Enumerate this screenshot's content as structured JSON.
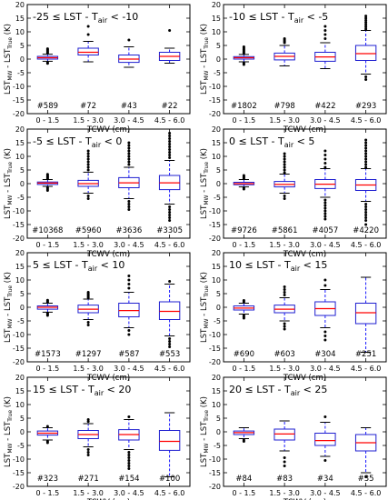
{
  "figure": {
    "xlabel": "TCWV (cm)",
    "ylabel_main": "LST",
    "ylabel_sub1": "MW",
    "ylabel_mid": " - LST",
    "ylabel_sub2": "True",
    "ylabel_unit": " (K)",
    "categories": [
      "0 - 1.5",
      "1.5 - 3.0",
      "3.0 - 4.5",
      "4.5 - 6.0"
    ],
    "y_ticks": [
      -20,
      -15,
      -10,
      -5,
      0,
      5,
      10,
      15,
      20
    ],
    "ylim": [
      -20,
      20
    ],
    "colors": {
      "box": "#1f1fd0",
      "median": "#ff0000",
      "whisker": "#0000ff",
      "flier": "#000000"
    }
  },
  "chart_data": [
    {
      "type": "box",
      "title_prefix": "-25 ≤ LST - T",
      "title_sub": "air",
      "title_suffix": " < -10",
      "categories": [
        "0 - 1.5",
        "1.5 - 3.0",
        "3.0 - 4.5",
        "4.5 - 6.0"
      ],
      "counts": [
        "#589",
        "#72",
        "#43",
        "#22"
      ],
      "ylim": [
        -20,
        20
      ],
      "boxes": [
        {
          "wl": -0.8,
          "q1": 0.0,
          "med": 0.5,
          "q3": 1.0,
          "wh": 1.8,
          "fliers": [
            -1.3,
            -1.6,
            2.2,
            2.6,
            3.0,
            3.4,
            3.8
          ]
        },
        {
          "wl": -1.0,
          "q1": 1.5,
          "med": 2.5,
          "q3": 4.0,
          "wh": 6.5,
          "fliers": [
            9.0,
            12.0
          ]
        },
        {
          "wl": -3.0,
          "q1": -1.2,
          "med": 0.0,
          "q3": 1.5,
          "wh": 4.5,
          "fliers": [
            7.0
          ]
        },
        {
          "wl": -1.5,
          "q1": -0.5,
          "med": 1.0,
          "q3": 2.5,
          "wh": 4.0,
          "fliers": [
            10.5
          ]
        }
      ]
    },
    {
      "type": "box",
      "title_prefix": "-10 ≤ LST - T",
      "title_sub": "air",
      "title_suffix": " < -5",
      "categories": [
        "0 - 1.5",
        "1.5 - 3.0",
        "3.0 - 4.5",
        "4.5 - 6.0"
      ],
      "counts": [
        "#1802",
        "#798",
        "#422",
        "#293"
      ],
      "ylim": [
        -20,
        20
      ],
      "boxes": [
        {
          "wl": -1.0,
          "q1": 0.0,
          "med": 0.5,
          "q3": 0.9,
          "wh": 1.7,
          "fliers": [
            -1.5,
            -2.0,
            2.0,
            2.5,
            3.0,
            3.5,
            4.0,
            4.5
          ]
        },
        {
          "wl": -2.5,
          "q1": -0.3,
          "med": 1.0,
          "q3": 2.2,
          "wh": 5.0,
          "fliers": [
            6.0,
            6.5,
            7.0,
            7.5
          ]
        },
        {
          "wl": -3.5,
          "q1": -0.8,
          "med": 0.8,
          "q3": 2.5,
          "wh": 6.0,
          "fliers": [
            7.5,
            9.0,
            10.5,
            12.0
          ]
        },
        {
          "wl": -5.5,
          "q1": -0.5,
          "med": 2.0,
          "q3": 5.0,
          "wh": 10.5,
          "fliers": [
            11.0,
            11.8,
            12.6,
            13.4,
            14.2,
            15.0,
            15.8,
            -6.5,
            -7.5
          ]
        }
      ]
    },
    {
      "type": "box",
      "title_prefix": "-5 ≤ LST - T",
      "title_sub": "air",
      "title_suffix": " < 0",
      "categories": [
        "0 - 1.5",
        "1.5 - 3.0",
        "3.0 - 4.5",
        "4.5 - 6.0"
      ],
      "counts": [
        "#10368",
        "#5960",
        "#3636",
        "#3305"
      ],
      "ylim": [
        -20,
        20
      ],
      "boxes": [
        {
          "wl": -1.0,
          "q1": -0.3,
          "med": 0.2,
          "q3": 0.6,
          "wh": 1.5,
          "fliers": [
            -1.5,
            -2.0,
            -2.5,
            1.8,
            2.2,
            2.6,
            3.0,
            3.4
          ]
        },
        {
          "wl": -3.5,
          "q1": -1.0,
          "med": 0.0,
          "q3": 1.2,
          "wh": 4.2,
          "fliers": [
            -4.5,
            -5.5,
            5.0,
            6.0,
            7.0,
            8.0,
            9.0,
            10.0,
            11.0,
            12.0
          ]
        },
        {
          "wl": -5.5,
          "q1": -1.5,
          "med": 0.3,
          "q3": 2.2,
          "wh": 6.0,
          "fliers": [
            -6.5,
            -7.5,
            -8.5,
            -9.5,
            7.0,
            8.0,
            9.0,
            10.0,
            11.0,
            12.0,
            13.0,
            14.0,
            15.0
          ]
        },
        {
          "wl": -7.5,
          "q1": -2.2,
          "med": 0.3,
          "q3": 3.0,
          "wh": 8.5,
          "fliers": [
            -8.5,
            -9.5,
            -10.5,
            -11.5,
            -12.5,
            -13.5,
            9.5,
            10.5,
            11.5,
            12.5,
            13.5,
            14.5,
            15.5,
            16.5,
            17.5,
            18.5
          ]
        }
      ]
    },
    {
      "type": "box",
      "title_prefix": "0 ≤ LST - T",
      "title_sub": "air",
      "title_suffix": " < 5",
      "categories": [
        "0 - 1.5",
        "1.5 - 3.0",
        "3.0 - 4.5",
        "4.5 - 6.0"
      ],
      "counts": [
        "#9726",
        "#5861",
        "#4057",
        "#4220"
      ],
      "ylim": [
        -20,
        20
      ],
      "boxes": [
        {
          "wl": -1.2,
          "q1": -0.4,
          "med": 0.0,
          "q3": 0.5,
          "wh": 1.5,
          "fliers": [
            -1.5,
            -2.0,
            1.8,
            2.2,
            2.6,
            3.0
          ]
        },
        {
          "wl": -3.5,
          "q1": -1.2,
          "med": -0.3,
          "q3": 0.8,
          "wh": 3.5,
          "fliers": [
            -4.5,
            -5.5,
            4.0,
            5.0,
            6.0,
            7.0,
            8.0,
            9.0,
            10.0,
            11.0
          ]
        },
        {
          "wl": -5.0,
          "q1": -1.8,
          "med": -0.2,
          "q3": 1.5,
          "wh": 5.5,
          "fliers": [
            -6.0,
            -7.0,
            -8.0,
            -9.0,
            -10.0,
            -11.0,
            -12.0,
            -13.0,
            6.0,
            7.5,
            9.0,
            10.5,
            12.0
          ]
        },
        {
          "wl": -6.5,
          "q1": -2.5,
          "med": -0.5,
          "q3": 1.5,
          "wh": 5.5,
          "fliers": [
            -7.5,
            -8.5,
            -9.5,
            -10.5,
            -11.5,
            -12.5,
            -13.5,
            -15.0,
            6.0,
            7.0,
            8.0,
            9.0,
            10.0,
            11.0,
            12.0,
            13.0,
            14.0,
            15.0,
            16.0
          ]
        }
      ]
    },
    {
      "type": "box",
      "title_prefix": "5 ≤ LST - T",
      "title_sub": "air",
      "title_suffix": " < 10",
      "categories": [
        "0 - 1.5",
        "1.5 - 3.0",
        "3.0 - 4.5",
        "4.5 - 6.0"
      ],
      "counts": [
        "#1573",
        "#1297",
        "#587",
        "#553"
      ],
      "ylim": [
        -20,
        20
      ],
      "boxes": [
        {
          "wl": -1.8,
          "q1": -0.7,
          "med": 0.0,
          "q3": 0.5,
          "wh": 1.5,
          "fliers": [
            -2.2,
            -2.6,
            -3.0,
            1.8,
            2.2,
            2.6
          ]
        },
        {
          "wl": -4.5,
          "q1": -2.0,
          "med": -0.7,
          "q3": 0.8,
          "wh": 3.0,
          "fliers": [
            -5.5,
            -6.5,
            3.5,
            4.0,
            4.5,
            5.0,
            5.5
          ]
        },
        {
          "wl": -7.5,
          "q1": -3.5,
          "med": -1.2,
          "q3": 1.5,
          "wh": 5.5,
          "fliers": [
            -8.5,
            -10.0,
            7.0,
            8.5,
            10.0,
            11.5
          ]
        },
        {
          "wl": -10.5,
          "q1": -4.5,
          "med": -1.5,
          "q3": 2.0,
          "wh": 8.5,
          "fliers": [
            -11.5,
            -12.5,
            -13.5,
            -14.5,
            9.5
          ]
        }
      ]
    },
    {
      "type": "box",
      "title_prefix": "10 ≤ LST - T",
      "title_sub": "air",
      "title_suffix": " < 15",
      "categories": [
        "0 - 1.5",
        "1.5 - 3.0",
        "3.0 - 4.5",
        "4.5 - 6.0"
      ],
      "counts": [
        "#690",
        "#603",
        "#304",
        "#251"
      ],
      "ylim": [
        -20,
        20
      ],
      "boxes": [
        {
          "wl": -2.5,
          "q1": -1.0,
          "med": -0.3,
          "q3": 0.5,
          "wh": 1.5,
          "fliers": [
            -3.0,
            -3.5,
            -4.0,
            2.0,
            2.5
          ]
        },
        {
          "wl": -5.0,
          "q1": -2.0,
          "med": -0.7,
          "q3": 0.8,
          "wh": 3.5,
          "fliers": [
            -6.0,
            -7.0,
            -8.0,
            4.5,
            5.5,
            6.5,
            7.5
          ]
        },
        {
          "wl": -7.5,
          "q1": -3.0,
          "med": -0.5,
          "q3": 2.0,
          "wh": 6.5,
          "fliers": [
            -9.0,
            -10.5,
            -12.0,
            8.0,
            10.0
          ]
        },
        {
          "wl": -16.5,
          "q1": -6.0,
          "med": -2.0,
          "q3": 1.5,
          "wh": 11.0,
          "fliers": []
        }
      ]
    },
    {
      "type": "box",
      "title_prefix": "15 ≤ LST - T",
      "title_sub": "air",
      "title_suffix": " < 20",
      "categories": [
        "0 - 1.5",
        "1.5 - 3.0",
        "3.0 - 4.5",
        "4.5 - 6.0"
      ],
      "counts": [
        "#323",
        "#271",
        "#154",
        "#100"
      ],
      "ylim": [
        -20,
        20
      ],
      "boxes": [
        {
          "wl": -3.0,
          "q1": -1.2,
          "med": -0.5,
          "q3": 0.3,
          "wh": 1.5,
          "fliers": [
            -3.5,
            -4.0,
            2.0
          ]
        },
        {
          "wl": -5.5,
          "q1": -2.5,
          "med": -1.0,
          "q3": 0.5,
          "wh": 3.0,
          "fliers": [
            -6.5,
            -7.5,
            -8.5,
            3.8,
            4.5
          ]
        },
        {
          "wl": -6.5,
          "q1": -3.0,
          "med": -1.0,
          "q3": 0.8,
          "wh": 4.5,
          "fliers": [
            -7.5,
            -8.5,
            -9.5,
            -10.5,
            -11.5,
            -12.5,
            -13.5,
            5.5
          ]
        },
        {
          "wl": -16.5,
          "q1": -6.8,
          "med": -3.5,
          "q3": 0.5,
          "wh": 7.0,
          "fliers": []
        }
      ]
    },
    {
      "type": "box",
      "title_prefix": "20 ≤ LST - T",
      "title_sub": "air",
      "title_suffix": " < 25",
      "categories": [
        "0 - 1.5",
        "1.5 - 3.0",
        "3.0 - 4.5",
        "4.5 - 6.0"
      ],
      "counts": [
        "#84",
        "#83",
        "#34",
        "#35"
      ],
      "ylim": [
        -20,
        20
      ],
      "boxes": [
        {
          "wl": -2.5,
          "q1": -1.0,
          "med": -0.3,
          "q3": 0.3,
          "wh": 1.5,
          "fliers": [
            -3.0,
            -3.5
          ]
        },
        {
          "wl": -7.0,
          "q1": -3.0,
          "med": -0.8,
          "q3": 1.0,
          "wh": 4.0,
          "fliers": [
            -9.5,
            -11.0,
            -12.5
          ]
        },
        {
          "wl": -9.0,
          "q1": -5.0,
          "med": -3.2,
          "q3": -0.5,
          "wh": 3.5,
          "fliers": [
            -10.5,
            5.5
          ]
        },
        {
          "wl": -15.0,
          "q1": -7.0,
          "med": -4.0,
          "q3": -1.0,
          "wh": 1.5,
          "fliers": [
            -16.5
          ]
        }
      ]
    }
  ]
}
